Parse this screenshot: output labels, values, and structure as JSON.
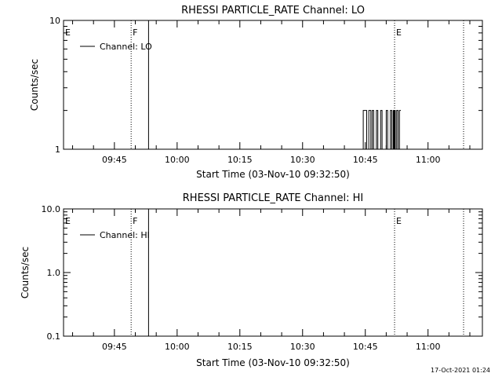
{
  "chart_data": [
    {
      "type": "line",
      "title": "RHESSI PARTICLE_RATE Channel: LO",
      "xlabel": "Start Time (03-Nov-10 09:32:50)",
      "ylabel": "Counts/sec",
      "xlim": [
        "09:32:50",
        "11:13:00"
      ],
      "x_ticks": [
        "09:45",
        "10:00",
        "10:15",
        "10:30",
        "10:45",
        "11:00"
      ],
      "yscale": "log",
      "ylim": [
        1,
        10
      ],
      "y_ticks": [
        "1",
        "10"
      ],
      "legend": {
        "label": "Channel: LO",
        "placement": "top-left"
      },
      "flag_labels": [
        {
          "label": "E",
          "time": "09:32:50"
        },
        {
          "label": "F",
          "time": "09:49:00"
        },
        {
          "label": "E",
          "time": "10:52:00"
        }
      ],
      "dotted_lines": [
        "09:49:00",
        "10:52:00",
        "11:08:30"
      ],
      "solid_line": "09:53:10",
      "series": [
        {
          "name": "Channel: LO",
          "x": [
            "10:44:00",
            "10:44:30",
            "10:44:30",
            "10:45:20",
            "10:45:20",
            "10:45:50",
            "10:45:50",
            "10:46:20",
            "10:46:20",
            "10:46:40",
            "10:46:40",
            "10:47:00",
            "10:47:00",
            "10:47:40",
            "10:47:40",
            "10:48:00",
            "10:48:00",
            "10:48:40",
            "10:48:40",
            "10:49:00",
            "10:49:00",
            "10:50:00",
            "10:50:00",
            "10:50:20",
            "10:50:20",
            "10:51:00",
            "10:51:00",
            "10:51:20",
            "10:51:20",
            "10:51:40",
            "10:51:40",
            "10:51:50",
            "10:51:50",
            "10:52:00",
            "10:52:00",
            "10:52:10",
            "10:52:10",
            "10:52:30",
            "10:52:30",
            "10:52:50",
            "10:52:50",
            "10:53:10",
            "10:53:10",
            "10:53:30"
          ],
          "y": [
            1,
            1,
            2,
            2,
            1,
            1,
            2,
            2,
            1,
            1,
            2,
            2,
            1,
            1,
            2,
            2,
            1,
            1,
            2,
            2,
            1,
            1,
            2,
            2,
            1,
            1,
            2,
            2,
            1,
            1,
            2,
            2,
            1,
            1,
            2,
            2,
            1,
            1,
            2,
            2,
            1,
            1,
            2,
            2
          ]
        }
      ]
    },
    {
      "type": "line",
      "title": "RHESSI PARTICLE_RATE Channel: HI",
      "xlabel": "Start Time (03-Nov-10 09:32:50)",
      "ylabel": "Counts/sec",
      "xlim": [
        "09:32:50",
        "11:13:00"
      ],
      "x_ticks": [
        "09:45",
        "10:00",
        "10:15",
        "10:30",
        "10:45",
        "11:00"
      ],
      "yscale": "log",
      "ylim": [
        0.1,
        10
      ],
      "y_ticks": [
        "0.1",
        "1.0",
        "10.0"
      ],
      "legend": {
        "label": "Channel: HI",
        "placement": "top-left"
      },
      "flag_labels": [
        {
          "label": "E",
          "time": "09:32:50"
        },
        {
          "label": "F",
          "time": "09:49:00"
        },
        {
          "label": "E",
          "time": "10:52:00"
        }
      ],
      "dotted_lines": [
        "09:49:00",
        "10:52:00",
        "11:08:30"
      ],
      "solid_line": "09:53:10",
      "series": [
        {
          "name": "Channel: HI",
          "x": [],
          "y": []
        }
      ]
    }
  ],
  "footer": {
    "timestamp": "17-Oct-2021 01:24"
  }
}
